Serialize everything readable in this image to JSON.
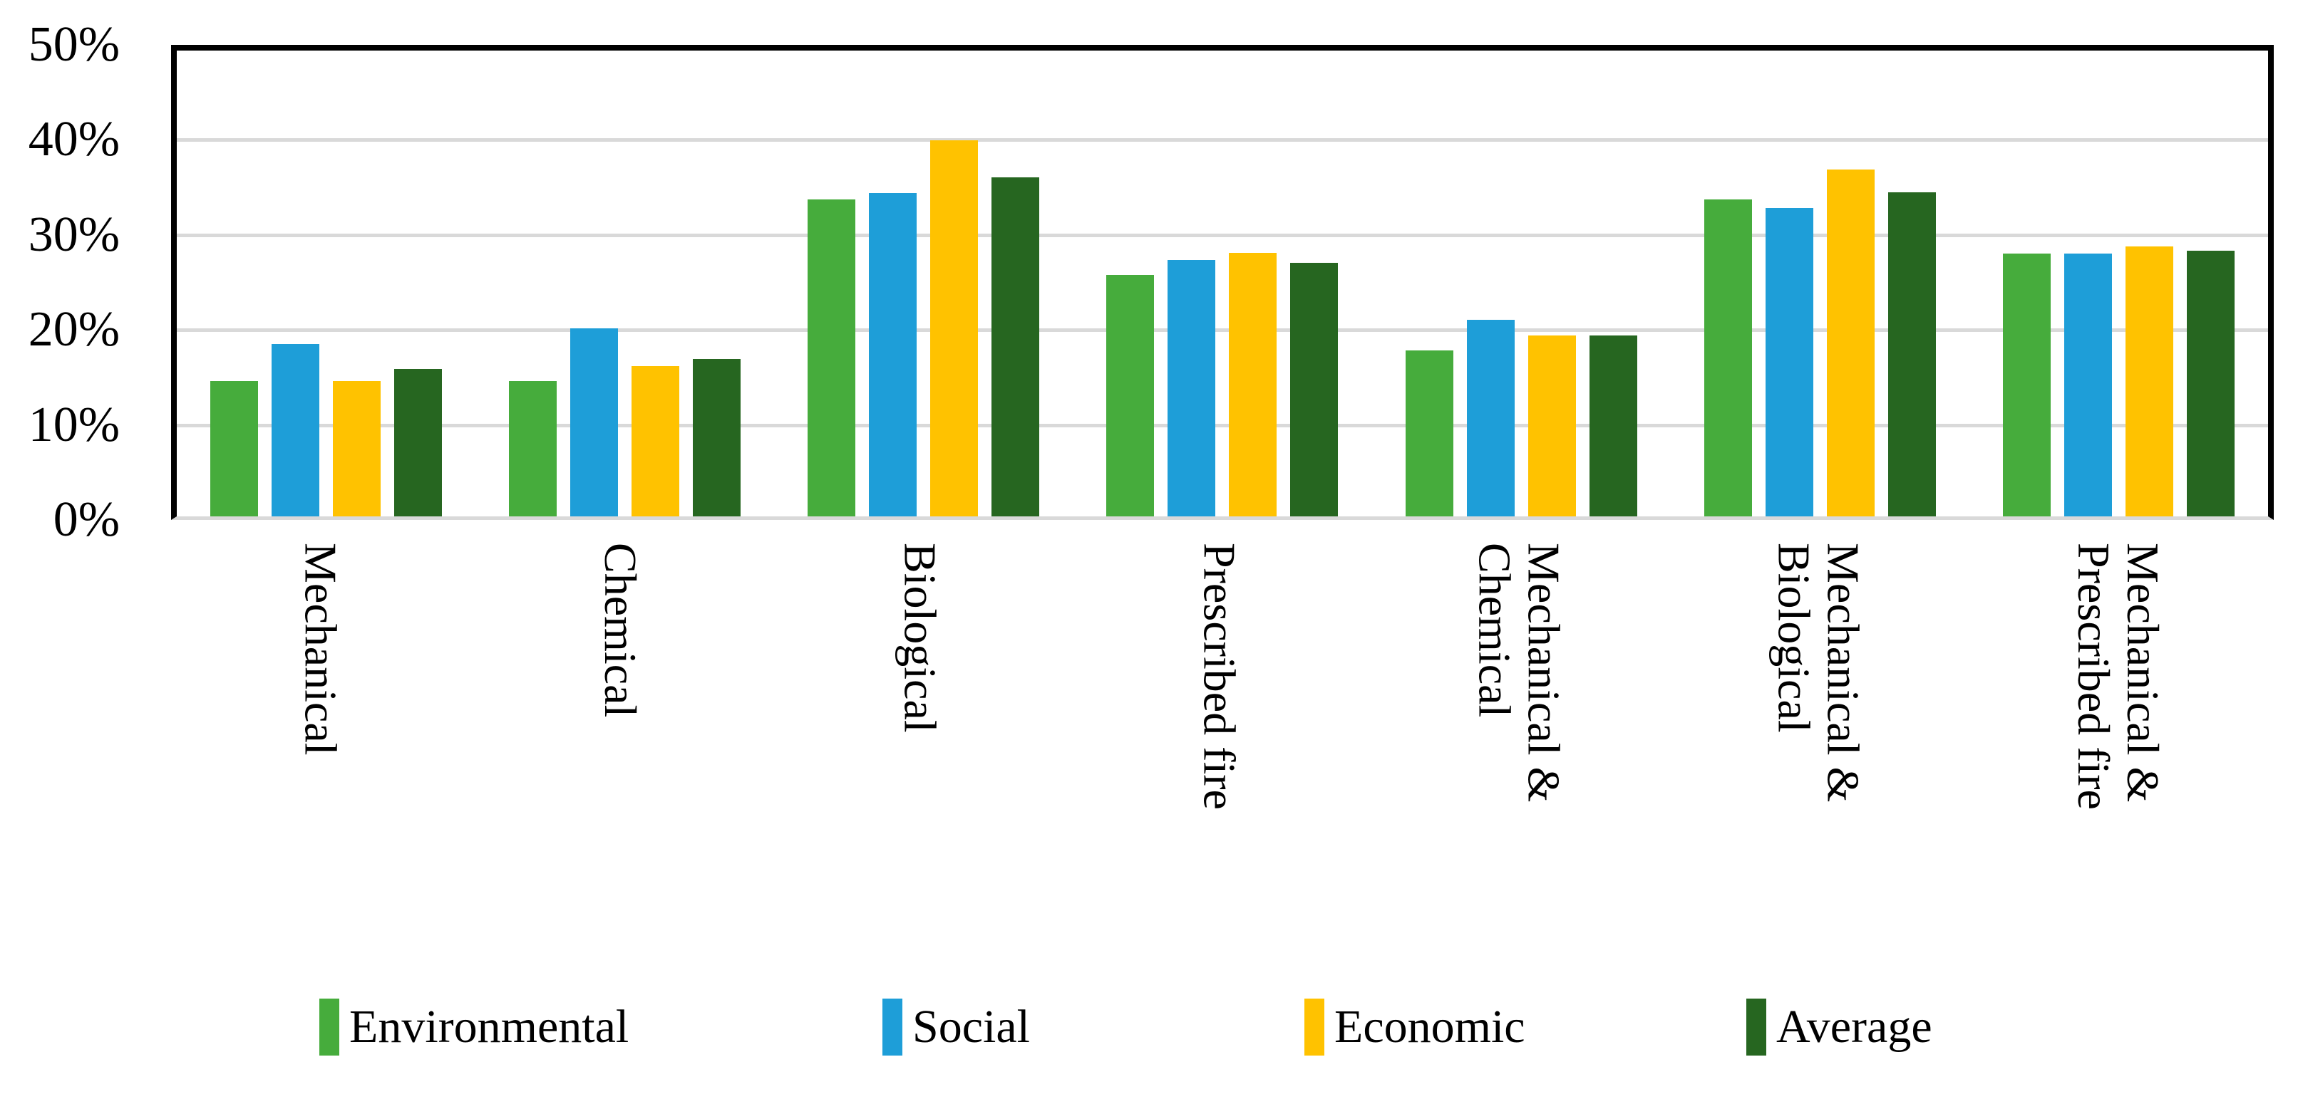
{
  "chart_data": {
    "type": "bar",
    "title": "",
    "xlabel": "",
    "ylabel": "",
    "ylim": [
      0,
      50
    ],
    "grid": "horizontal-only",
    "legend_position": "bottom",
    "yticks": [
      {
        "label": "50%",
        "value": 50
      },
      {
        "label": "40%",
        "value": 40
      },
      {
        "label": "30%",
        "value": 30
      },
      {
        "label": "20%",
        "value": 20
      },
      {
        "label": "10%",
        "value": 10
      },
      {
        "label": "0%",
        "value": 0
      }
    ],
    "gridline_values": [
      40,
      30,
      20,
      10
    ],
    "categories": [
      [
        "Mechanical"
      ],
      [
        "Chemical"
      ],
      [
        "Biological"
      ],
      [
        "Prescribed fire"
      ],
      [
        "Mechanical &",
        "Chemical"
      ],
      [
        "Mechanical &",
        "Biological"
      ],
      [
        "Mechanical &",
        "Prescribed fire"
      ]
    ],
    "series": [
      {
        "name": "Environmental",
        "color": "#46AC3C",
        "values": [
          14.5,
          14.5,
          34.0,
          25.9,
          17.8,
          34.0,
          28.2
        ]
      },
      {
        "name": "Social",
        "color": "#1E9ED8",
        "values": [
          18.5,
          20.2,
          34.7,
          27.5,
          21.1,
          33.1,
          28.2
        ]
      },
      {
        "name": "Economic",
        "color": "#FFC200",
        "values": [
          14.5,
          16.1,
          40.4,
          28.3,
          19.4,
          37.2,
          29.0
        ]
      },
      {
        "name": "Average",
        "color": "#266620",
        "values": [
          15.8,
          16.9,
          36.4,
          27.2,
          19.4,
          34.8,
          28.5
        ]
      }
    ]
  },
  "colors": {
    "gridline": "#D9D9D9",
    "frame": "#000000",
    "background": "#FFFFFF"
  }
}
